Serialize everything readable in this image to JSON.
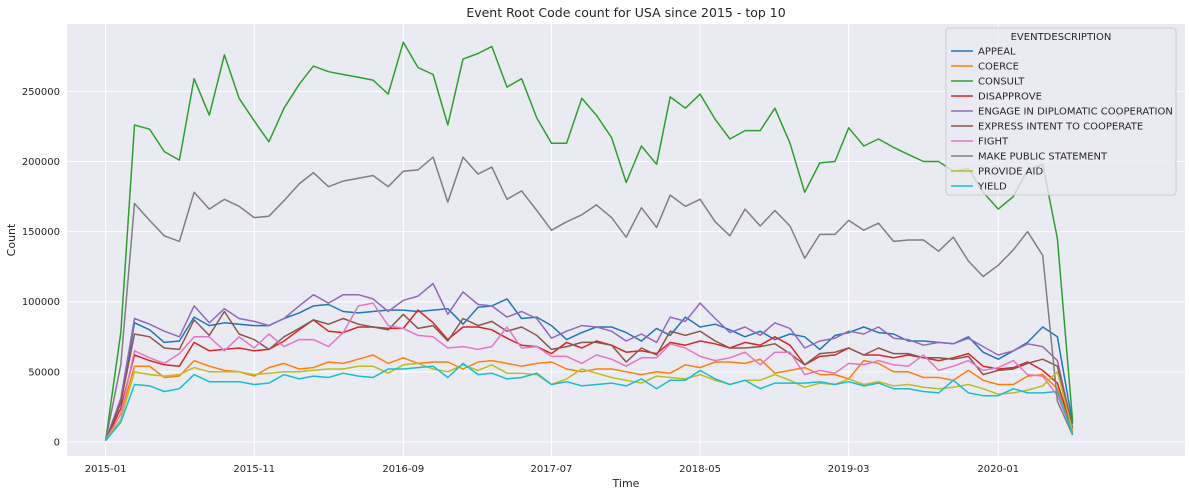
{
  "chart_data": {
    "type": "line",
    "title": "Event Root Code count for USA since 2015 - top 10",
    "xlabel": "Time",
    "ylabel": "Count",
    "ylim": [
      -10000,
      298000
    ],
    "xlim": [
      "2014-10-14",
      "2021-01-17"
    ],
    "grid": true,
    "legend": {
      "title": "EVENTDESCRIPTION",
      "placement": "top-right"
    },
    "x": [
      "2015-01",
      "2015-02",
      "2015-03",
      "2015-04",
      "2015-05",
      "2015-06",
      "2015-07",
      "2015-08",
      "2015-09",
      "2015-10",
      "2015-11",
      "2015-12",
      "2016-01",
      "2016-02",
      "2016-03",
      "2016-04",
      "2016-05",
      "2016-06",
      "2016-07",
      "2016-08",
      "2016-09",
      "2016-10",
      "2016-11",
      "2016-12",
      "2017-01",
      "2017-02",
      "2017-03",
      "2017-04",
      "2017-05",
      "2017-06",
      "2017-07",
      "2017-08",
      "2017-09",
      "2017-10",
      "2017-11",
      "2017-12",
      "2018-01",
      "2018-02",
      "2018-03",
      "2018-04",
      "2018-05",
      "2018-06",
      "2018-07",
      "2018-08",
      "2018-09",
      "2018-10",
      "2018-11",
      "2018-12",
      "2019-01",
      "2019-02",
      "2019-03",
      "2019-04",
      "2019-05",
      "2019-06",
      "2019-07",
      "2019-08",
      "2019-09",
      "2019-10",
      "2019-11",
      "2019-12",
      "2020-01",
      "2020-02",
      "2020-03",
      "2020-04",
      "2020-05",
      "2020-06"
    ],
    "xticks": [
      "2015-01",
      "2015-11",
      "2016-09",
      "2017-07",
      "2018-05",
      "2019-03",
      "2020-01"
    ],
    "yticks": [
      0,
      50000,
      100000,
      150000,
      200000,
      250000
    ],
    "series": [
      {
        "name": "APPEAL",
        "color": "#1f77b4",
        "values": [
          1000,
          28000,
          85000,
          80000,
          71000,
          72000,
          89000,
          83000,
          85000,
          84000,
          83000,
          83000,
          88000,
          92000,
          97000,
          98000,
          93000,
          92000,
          93000,
          94000,
          94000,
          93000,
          94000,
          95000,
          84000,
          96000,
          97000,
          102000,
          88000,
          89000,
          83000,
          73000,
          78000,
          82000,
          82000,
          78000,
          72000,
          81000,
          76000,
          89000,
          82000,
          84000,
          80000,
          75000,
          79000,
          73000,
          77000,
          75000,
          66000,
          76000,
          78000,
          82000,
          78000,
          77000,
          72000,
          72000,
          71000,
          70000,
          75000,
          64000,
          59000,
          65000,
          71000,
          82000,
          75000,
          13000
        ]
      },
      {
        "name": "COERCE",
        "color": "#ff7f0e",
        "values": [
          1000,
          20000,
          54000,
          54000,
          46000,
          47000,
          58000,
          54000,
          51000,
          50000,
          47000,
          53000,
          56000,
          52000,
          53000,
          57000,
          56000,
          59000,
          62000,
          56000,
          60000,
          56000,
          57000,
          57000,
          52000,
          57000,
          58000,
          56000,
          54000,
          56000,
          57000,
          52000,
          50000,
          52000,
          52000,
          50000,
          48000,
          50000,
          49000,
          55000,
          53000,
          57000,
          57000,
          56000,
          59000,
          49000,
          51000,
          53000,
          48000,
          48000,
          45000,
          58000,
          56000,
          50000,
          50000,
          46000,
          46000,
          44000,
          51000,
          44000,
          41000,
          41000,
          47000,
          48000,
          38000,
          8000
        ]
      },
      {
        "name": "CONSULT",
        "color": "#2ca02c",
        "values": [
          1000,
          78000,
          226000,
          223000,
          207000,
          201000,
          259000,
          233000,
          276000,
          245000,
          229000,
          214000,
          238000,
          255000,
          268000,
          264000,
          262000,
          260000,
          258000,
          248000,
          285000,
          267000,
          262000,
          226000,
          273000,
          277000,
          282000,
          253000,
          259000,
          231000,
          213000,
          213000,
          245000,
          233000,
          217000,
          185000,
          211000,
          198000,
          246000,
          238000,
          248000,
          230000,
          216000,
          222000,
          222000,
          238000,
          213000,
          178000,
          199000,
          200000,
          224000,
          211000,
          216000,
          210000,
          205000,
          200000,
          200000,
          193000,
          195000,
          178000,
          166000,
          175000,
          194000,
          198000,
          145000,
          15000
        ]
      },
      {
        "name": "DISAPPROVE",
        "color": "#d62728",
        "values": [
          1000,
          24000,
          62000,
          58000,
          55000,
          54000,
          71000,
          65000,
          66000,
          67000,
          65000,
          66000,
          72000,
          80000,
          87000,
          79000,
          78000,
          82000,
          82000,
          81000,
          81000,
          94000,
          85000,
          73000,
          82000,
          82000,
          80000,
          74000,
          69000,
          68000,
          63000,
          71000,
          67000,
          72000,
          69000,
          64000,
          65000,
          63000,
          71000,
          69000,
          72000,
          70000,
          67000,
          71000,
          69000,
          75000,
          69000,
          55000,
          61000,
          62000,
          67000,
          62000,
          62000,
          60000,
          62000,
          60000,
          58000,
          60000,
          63000,
          54000,
          52000,
          53000,
          57000,
          51000,
          42000,
          9000
        ]
      },
      {
        "name": "ENGAGE IN DIPLOMATIC COOPERATION",
        "color": "#9467bd",
        "values": [
          1000,
          31000,
          88000,
          84000,
          79000,
          75000,
          97000,
          85000,
          95000,
          88000,
          86000,
          83000,
          88000,
          97000,
          105000,
          99000,
          105000,
          105000,
          102000,
          93000,
          101000,
          104000,
          113000,
          91000,
          107000,
          98000,
          97000,
          89000,
          93000,
          88000,
          74000,
          79000,
          83000,
          82000,
          79000,
          72000,
          77000,
          71000,
          89000,
          86000,
          99000,
          88000,
          78000,
          82000,
          76000,
          85000,
          81000,
          67000,
          72000,
          74000,
          79000,
          77000,
          82000,
          74000,
          73000,
          69000,
          71000,
          70000,
          74000,
          68000,
          62000,
          65000,
          70000,
          68000,
          58000,
          10000
        ]
      },
      {
        "name": "EXPRESS INTENT TO COOPERATE",
        "color": "#8c564b",
        "values": [
          1000,
          28000,
          77000,
          75000,
          67000,
          66000,
          87000,
          76000,
          93000,
          77000,
          73000,
          66000,
          75000,
          81000,
          87000,
          84000,
          88000,
          84000,
          82000,
          80000,
          91000,
          81000,
          83000,
          72000,
          88000,
          83000,
          86000,
          79000,
          82000,
          76000,
          66000,
          68000,
          71000,
          71000,
          69000,
          57000,
          67000,
          62000,
          79000,
          76000,
          79000,
          72000,
          67000,
          67000,
          68000,
          70000,
          63000,
          55000,
          63000,
          64000,
          67000,
          62000,
          67000,
          63000,
          63000,
          60000,
          60000,
          59000,
          61000,
          48000,
          51000,
          52000,
          56000,
          59000,
          54000,
          10000
        ]
      },
      {
        "name": "FIGHT",
        "color": "#e377c2",
        "values": [
          1000,
          20000,
          65000,
          60000,
          56000,
          63000,
          75000,
          75000,
          65000,
          75000,
          67000,
          77000,
          68000,
          73000,
          73000,
          68000,
          78000,
          97000,
          99000,
          83000,
          81000,
          76000,
          75000,
          67000,
          68000,
          66000,
          68000,
          82000,
          67000,
          68000,
          61000,
          61000,
          56000,
          62000,
          59000,
          54000,
          60000,
          60000,
          70000,
          67000,
          61000,
          58000,
          60000,
          64000,
          55000,
          64000,
          64000,
          48000,
          51000,
          49000,
          56000,
          55000,
          58000,
          55000,
          54000,
          62000,
          51000,
          54000,
          58000,
          51000,
          53000,
          58000,
          48000,
          47000,
          33000,
          7000
        ]
      },
      {
        "name": "MAKE PUBLIC STATEMENT",
        "color": "#7f7f7f",
        "values": [
          1000,
          55000,
          170000,
          158000,
          147000,
          143000,
          178000,
          166000,
          173000,
          168000,
          160000,
          161000,
          172000,
          184000,
          192000,
          182000,
          186000,
          188000,
          190000,
          182000,
          193000,
          194000,
          203000,
          171000,
          203000,
          191000,
          196000,
          173000,
          179000,
          165000,
          151000,
          157000,
          162000,
          169000,
          160000,
          146000,
          167000,
          153000,
          176000,
          168000,
          173000,
          157000,
          147000,
          166000,
          154000,
          165000,
          154000,
          131000,
          148000,
          148000,
          158000,
          151000,
          156000,
          143000,
          144000,
          144000,
          136000,
          146000,
          129000,
          118000,
          126000,
          137000,
          150000,
          133000,
          29000,
          5000
        ]
      },
      {
        "name": "PROVIDE AID",
        "color": "#bcbd22",
        "values": [
          1000,
          16000,
          50000,
          48000,
          47000,
          48000,
          53000,
          50000,
          50000,
          50000,
          48000,
          49000,
          50000,
          50000,
          51000,
          52000,
          52000,
          54000,
          54000,
          49000,
          55000,
          56000,
          52000,
          50000,
          55000,
          51000,
          55000,
          49000,
          49000,
          48000,
          41000,
          45000,
          52000,
          49000,
          46000,
          44000,
          42000,
          47000,
          46000,
          45000,
          48000,
          44000,
          41000,
          44000,
          44000,
          48000,
          44000,
          39000,
          42000,
          41000,
          45000,
          41000,
          43000,
          40000,
          41000,
          39000,
          38000,
          39000,
          41000,
          38000,
          34000,
          35000,
          37000,
          40000,
          50000,
          8000
        ]
      },
      {
        "name": "YIELD",
        "color": "#17becf",
        "values": [
          1000,
          14000,
          41000,
          40000,
          36000,
          38000,
          48000,
          43000,
          43000,
          43000,
          41000,
          42000,
          48000,
          45000,
          47000,
          46000,
          49000,
          47000,
          46000,
          52000,
          52000,
          53000,
          54000,
          46000,
          56000,
          48000,
          49000,
          45000,
          46000,
          49000,
          41000,
          43000,
          40000,
          41000,
          42000,
          40000,
          45000,
          38000,
          44000,
          44000,
          51000,
          45000,
          41000,
          44000,
          38000,
          42000,
          42000,
          42000,
          43000,
          41000,
          43000,
          40000,
          42000,
          38000,
          38000,
          36000,
          35000,
          44000,
          35000,
          33000,
          33000,
          38000,
          35000,
          35000,
          36000,
          6000
        ]
      }
    ]
  }
}
